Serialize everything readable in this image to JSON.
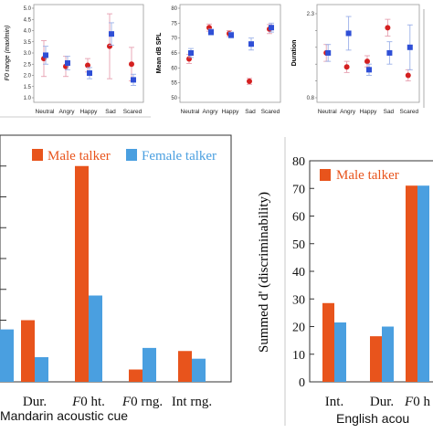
{
  "chart_data": [
    {
      "type": "scatter",
      "panel": "top-1",
      "ylabel": "F0 range (maxlmin)",
      "categories": [
        "Neutral",
        "Angry",
        "Happy",
        "Sad",
        "Scared"
      ],
      "ylim": [
        1.0,
        5.0
      ],
      "yticks": [
        "1.0",
        "1.5",
        "2.0",
        "2.5",
        "3.0",
        "3.5",
        "4.0",
        "4.5",
        "5.0"
      ],
      "series": [
        {
          "marker": "circle",
          "color": "#d42020",
          "values": [
            2.75,
            2.4,
            2.45,
            3.3,
            2.5
          ],
          "err": [
            0.8,
            0.45,
            0.3,
            1.45,
            0.75
          ]
        },
        {
          "marker": "square",
          "color": "#2f4fd6",
          "values": [
            2.9,
            2.55,
            2.1,
            3.85,
            1.8
          ],
          "err": [
            0.4,
            0.3,
            0.25,
            0.5,
            0.25
          ]
        }
      ]
    },
    {
      "type": "scatter",
      "panel": "top-2",
      "ylabel": "Mean dB SPL",
      "categories": [
        "Neutral",
        "Angry",
        "Happy",
        "Sad",
        "Scared"
      ],
      "ylim": [
        50,
        80
      ],
      "yticks": [
        "50",
        "55",
        "60",
        "65",
        "70",
        "75",
        "80"
      ],
      "series": [
        {
          "marker": "circle",
          "color": "#d42020",
          "values": [
            63,
            73.5,
            71.5,
            55.5,
            73
          ],
          "err": [
            1.5,
            1.2,
            1.0,
            1.0,
            1.5
          ]
        },
        {
          "marker": "square",
          "color": "#2f4fd6",
          "values": [
            65,
            72,
            71,
            68,
            73.5
          ],
          "err": [
            1.5,
            1.0,
            1.0,
            2.0,
            1.5
          ]
        }
      ]
    },
    {
      "type": "scatter",
      "panel": "top-3",
      "ylabel": "Duration",
      "categories": [
        "Neutral",
        "Angry",
        "Happy",
        "Sad",
        "Scared"
      ],
      "ylim": [
        0.8,
        2.3
      ],
      "yticks": [
        "0.8",
        "",
        "",
        "",
        "",
        "2.3"
      ],
      "series": [
        {
          "marker": "circle",
          "color": "#d42020",
          "values": [
            1.6,
            1.35,
            1.45,
            2.05,
            1.2
          ],
          "err": [
            0.15,
            0.1,
            0.1,
            0.15,
            0.1
          ]
        },
        {
          "marker": "square",
          "color": "#2f4fd6",
          "values": [
            1.6,
            1.95,
            1.3,
            1.6,
            1.7
          ],
          "err": [
            0.15,
            0.3,
            0.1,
            0.2,
            0.4
          ]
        }
      ]
    },
    {
      "type": "bar",
      "panel": "bottom-left",
      "xlabel": "Mandarin acoustic cue",
      "categories": [
        "",
        "Dur.",
        "F0 ht.",
        "F0 rng.",
        "Int rng."
      ],
      "ylim": [
        0,
        80
      ],
      "series": [
        {
          "name": "Male talker",
          "color": "#e8541c",
          "values": [
            0,
            20,
            70,
            4,
            10
          ]
        },
        {
          "name": "Female talker",
          "color": "#4a9fe0",
          "values": [
            17,
            8,
            28,
            11,
            7.5
          ]
        }
      ]
    },
    {
      "type": "bar",
      "panel": "bottom-right",
      "xlabel": "English acou",
      "ylabel": "Summed d' (discriminability)",
      "categories": [
        "Int.",
        "Dur.",
        "F0 h"
      ],
      "ylim": [
        0,
        80
      ],
      "yticks": [
        "0",
        "10",
        "20",
        "30",
        "40",
        "50",
        "60",
        "70",
        "80"
      ],
      "series": [
        {
          "name": "Male talker",
          "color": "#e8541c",
          "values": [
            28.5,
            16.5,
            71
          ]
        },
        {
          "name": "Female talker",
          "color": "#4a9fe0",
          "values": [
            21.5,
            20,
            71
          ]
        }
      ]
    }
  ],
  "labels": {
    "legend_male": "Male talker",
    "legend_female": "Female talker"
  }
}
